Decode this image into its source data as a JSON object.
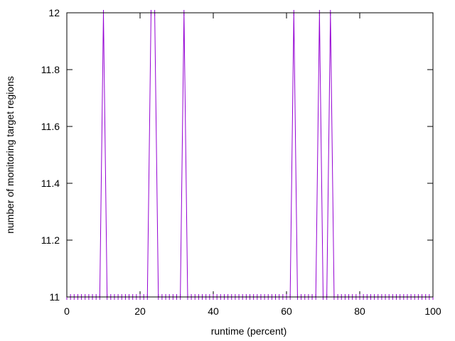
{
  "chart_data": {
    "type": "line",
    "title": "",
    "xlabel": "runtime (percent)",
    "ylabel": "number of monitoring target regions",
    "xlim": [
      0,
      100
    ],
    "ylim": [
      11,
      12
    ],
    "x_ticks": [
      "0",
      "20",
      "40",
      "60",
      "80",
      "100"
    ],
    "y_ticks": [
      "11",
      "11.2",
      "11.4",
      "11.6",
      "11.8",
      "12"
    ],
    "grid": false,
    "legend": "none",
    "line_color": "#9400d3",
    "series": [
      {
        "x": [
          0,
          1,
          2,
          3,
          4,
          5,
          6,
          7,
          8,
          9,
          10,
          11,
          12,
          13,
          14,
          15,
          16,
          17,
          18,
          19,
          20,
          21,
          22,
          23,
          24,
          25,
          26,
          27,
          28,
          29,
          30,
          31,
          32,
          33,
          34,
          35,
          36,
          37,
          38,
          39,
          40,
          41,
          42,
          43,
          44,
          45,
          46,
          47,
          48,
          49,
          50,
          51,
          52,
          53,
          54,
          55,
          56,
          57,
          58,
          59,
          60,
          61,
          62,
          63,
          64,
          65,
          66,
          67,
          68,
          69,
          70,
          71,
          72,
          73,
          74,
          75,
          76,
          77,
          78,
          79,
          80,
          81,
          82,
          83,
          84,
          85,
          86,
          87,
          88,
          89,
          90,
          91,
          92,
          93,
          94,
          95,
          96,
          97,
          98,
          99,
          100
        ],
        "values": [
          11,
          11,
          11,
          11,
          11,
          11,
          11,
          11,
          11,
          11,
          12,
          11,
          11,
          11,
          11,
          11,
          11,
          11,
          11,
          11,
          11,
          11,
          11,
          12,
          12,
          11,
          11,
          11,
          11,
          11,
          11,
          11,
          12,
          11,
          11,
          11,
          11,
          11,
          11,
          11,
          11,
          11,
          11,
          11,
          11,
          11,
          11,
          11,
          11,
          11,
          11,
          11,
          11,
          11,
          11,
          11,
          11,
          11,
          11,
          11,
          11,
          11,
          12,
          11,
          11,
          11,
          11,
          11,
          11,
          12,
          11,
          11,
          12,
          11,
          11,
          11,
          11,
          11,
          11,
          11,
          11,
          11,
          11,
          11,
          11,
          11,
          11,
          11,
          11,
          11,
          11,
          11,
          11,
          11,
          11,
          11,
          11,
          11,
          11,
          11,
          11
        ]
      }
    ]
  }
}
